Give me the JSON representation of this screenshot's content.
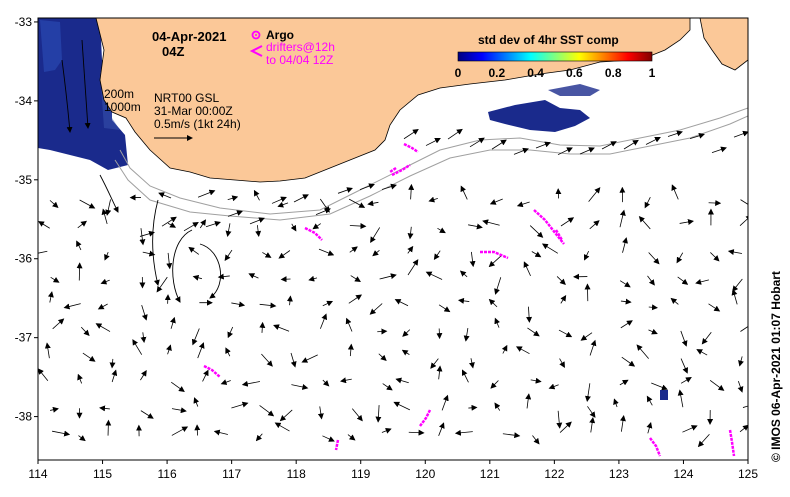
{
  "header": {
    "date": "04-Apr-2021",
    "time": "04Z"
  },
  "legend": {
    "argo_label": "Argo",
    "drifters_label": "drifters@12h",
    "drifters_to": "to 04/04 12Z"
  },
  "info": {
    "depth_200": "200m",
    "depth_1000": "1000m",
    "altimetry": "NRT00 GSL",
    "altimetry_date": "31-Mar 00:00Z",
    "scale_label": "0.5m/s (1kt 24h)"
  },
  "colorbar": {
    "title": "std dev of 4hr SST comp",
    "ticks": [
      "0",
      "0.2",
      "0.4",
      "0.6",
      "0.8",
      "1"
    ],
    "colors": [
      "#00007f",
      "#0000ff",
      "#0080ff",
      "#00ffff",
      "#80ff80",
      "#ffff00",
      "#ff8000",
      "#ff0000",
      "#7f0000"
    ]
  },
  "axes": {
    "x_ticks": [
      "114",
      "115",
      "116",
      "117",
      "118",
      "119",
      "120",
      "121",
      "122",
      "123",
      "124",
      "125"
    ],
    "y_ticks": [
      "-33",
      "-34",
      "-35",
      "-36",
      "-37",
      "-38"
    ],
    "xlim": [
      114,
      125
    ],
    "ylim": [
      -38.55,
      -32.95
    ]
  },
  "credit": "© IMOS 06-Apr-2021 01:07 Hobart",
  "colors": {
    "land": "#fbc898",
    "sst_dark_blue": "#1a2a8c",
    "drifter": "#ff00ff",
    "isobath": "#a0a0a0"
  }
}
